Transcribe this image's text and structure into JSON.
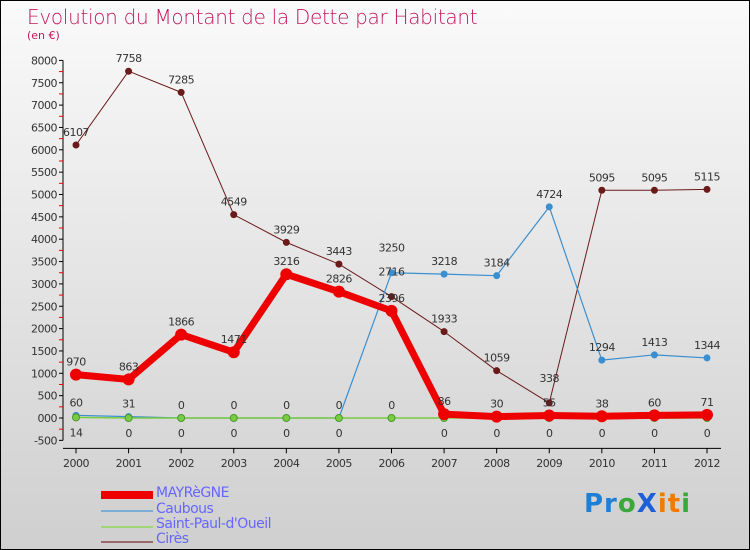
{
  "chart_data": {
    "type": "line",
    "title": "Evolution du Montant de la Dette par Habitant",
    "subtitle": "(en €)",
    "xlabel": "",
    "ylabel": "",
    "x": [
      "2000",
      "2001",
      "2002",
      "2003",
      "2004",
      "2005",
      "2006",
      "2007",
      "2008",
      "2009",
      "2010",
      "2011",
      "2012"
    ],
    "ylim": [
      -500,
      8000
    ],
    "yticks": [
      "-500",
      "000",
      "500",
      "1000",
      "1500",
      "2000",
      "2500",
      "3000",
      "3500",
      "4000",
      "4500",
      "5000",
      "5500",
      "6000",
      "6500",
      "7000",
      "7500",
      "8000"
    ],
    "legend_position": "bottom-left",
    "series": [
      {
        "name": "MAYRèGNE",
        "color": "#ee0000",
        "values": [
          970,
          863,
          1866,
          1471,
          3216,
          2826,
          2396,
          86,
          30,
          55,
          38,
          60,
          71
        ]
      },
      {
        "name": "Caubous",
        "color": "#3a8fd0",
        "values": [
          60,
          31,
          0,
          0,
          0,
          0,
          3250,
          3218,
          3184,
          4724,
          1294,
          1413,
          1344
        ]
      },
      {
        "name": "Saint-Paul-d'Oueil",
        "color": "#7acc44",
        "values": [
          14,
          0,
          0,
          0,
          0,
          0,
          0,
          0,
          0,
          0,
          0,
          0,
          0
        ]
      },
      {
        "name": "Cirès",
        "color": "#6b1a1a",
        "values": [
          6107,
          7758,
          7285,
          4549,
          3929,
          3443,
          2716,
          1933,
          1059,
          338,
          5095,
          5095,
          5115
        ]
      }
    ]
  },
  "logo": "Proxiti"
}
